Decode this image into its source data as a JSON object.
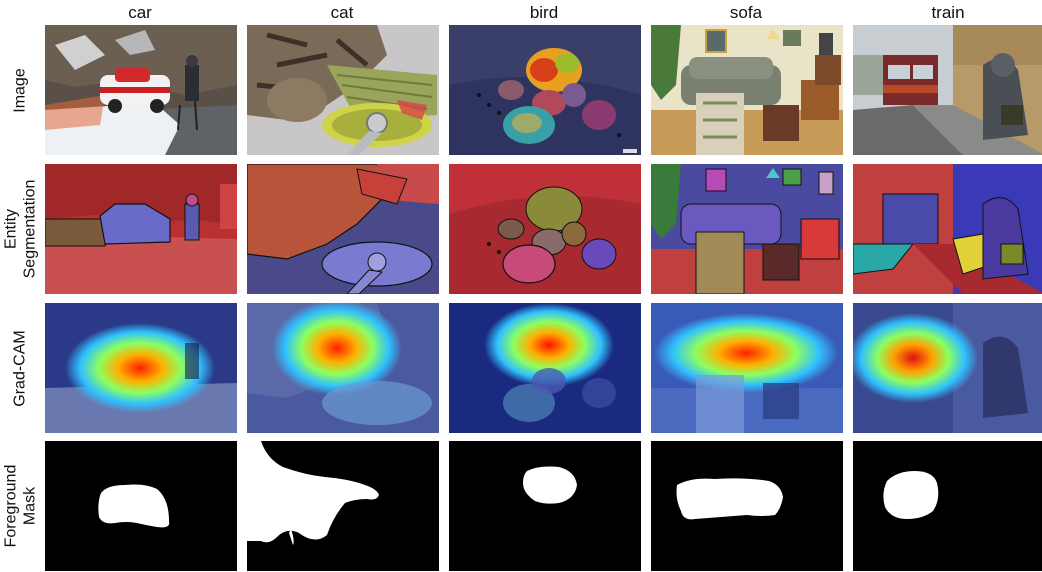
{
  "columns": [
    "car",
    "cat",
    "bird",
    "sofa",
    "train"
  ],
  "rows": [
    {
      "id": "image",
      "lines": [
        "Image"
      ]
    },
    {
      "id": "entity",
      "lines": [
        "Entity",
        "Segmentation"
      ]
    },
    {
      "id": "gradcam",
      "lines": [
        "Grad-CAM"
      ]
    },
    {
      "id": "mask",
      "lines": [
        "Foreground",
        "Mask"
      ]
    }
  ]
}
